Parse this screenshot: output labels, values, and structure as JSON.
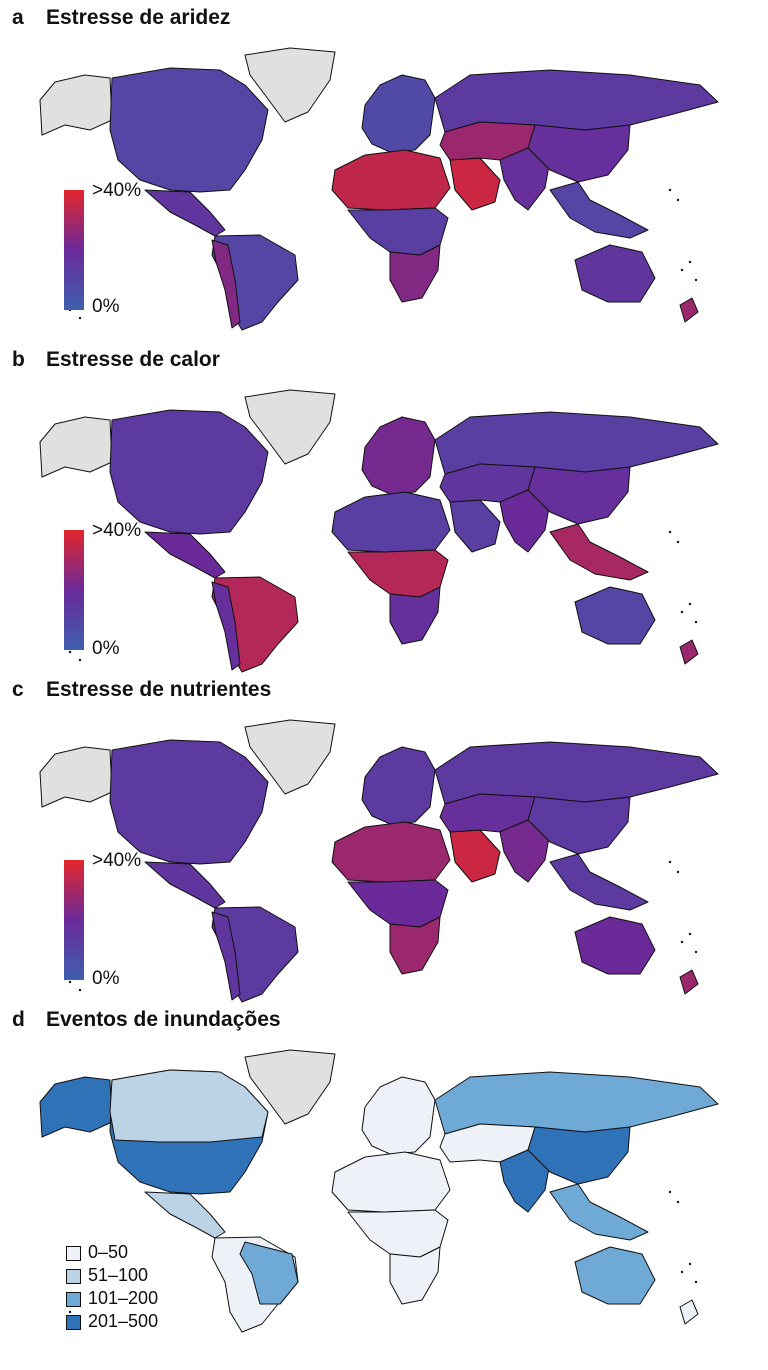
{
  "panels": [
    {
      "letter": "a",
      "title": "Estresse de aridez",
      "legend": {
        "max_label": ">40%",
        "min_label": "0%"
      },
      "region_stress": {
        "north_america": 0.25,
        "greenland": null,
        "central_america": 0.4,
        "south_america": 0.25,
        "andes": 0.6,
        "europe": 0.2,
        "sahara": 0.85,
        "arabia": 0.9,
        "central_africa": 0.3,
        "southern_africa": 0.6,
        "russia": 0.35,
        "central_asia": 0.7,
        "south_asia": 0.45,
        "china": 0.45,
        "se_asia": 0.25,
        "australia": 0.4
      }
    },
    {
      "letter": "b",
      "title": "Estresse de calor",
      "legend": {
        "max_label": ">40%",
        "min_label": "0%"
      },
      "region_stress": {
        "north_america": 0.35,
        "greenland": null,
        "central_america": 0.5,
        "south_america": 0.8,
        "andes": 0.45,
        "europe": 0.55,
        "sahara": 0.3,
        "arabia": 0.3,
        "central_africa": 0.8,
        "southern_africa": 0.45,
        "russia": 0.3,
        "central_asia": 0.4,
        "south_asia": 0.5,
        "china": 0.45,
        "se_asia": 0.75,
        "australia": 0.25
      }
    },
    {
      "letter": "c",
      "title": "Estresse de nutrientes",
      "legend": {
        "max_label": ">40%",
        "min_label": "0%"
      },
      "region_stress": {
        "north_america": 0.35,
        "greenland": null,
        "central_america": 0.4,
        "south_america": 0.35,
        "andes": 0.4,
        "europe": 0.35,
        "sahara": 0.7,
        "arabia": 0.9,
        "central_africa": 0.5,
        "southern_africa": 0.7,
        "russia": 0.35,
        "central_asia": 0.45,
        "south_asia": 0.55,
        "china": 0.35,
        "se_asia": 0.35,
        "australia": 0.5
      }
    },
    {
      "letter": "d",
      "title": "Eventos de inundações",
      "categories": [
        "0–50",
        "51–100",
        "101–200",
        "201–500"
      ],
      "region_category": {
        "north_america": 3,
        "canada": 1,
        "alaska": 3,
        "greenland": null,
        "central_america": 1,
        "south_america": 0,
        "brazil": 2,
        "europe": 0,
        "sahara": 0,
        "central_africa": 0,
        "southern_africa": 0,
        "russia": 2,
        "central_asia": 0,
        "south_asia": 3,
        "china": 3,
        "se_asia": 2,
        "australia": 2
      }
    }
  ],
  "colors": {
    "scale_low": "#3f5fae",
    "scale_mid": "#6a2a9a",
    "scale_high": "#e4262c",
    "no_data": "#e0e0e0",
    "flood_categories": [
      "#eef1f8",
      "#bcd3e6",
      "#6faad6",
      "#2f72b8"
    ]
  }
}
